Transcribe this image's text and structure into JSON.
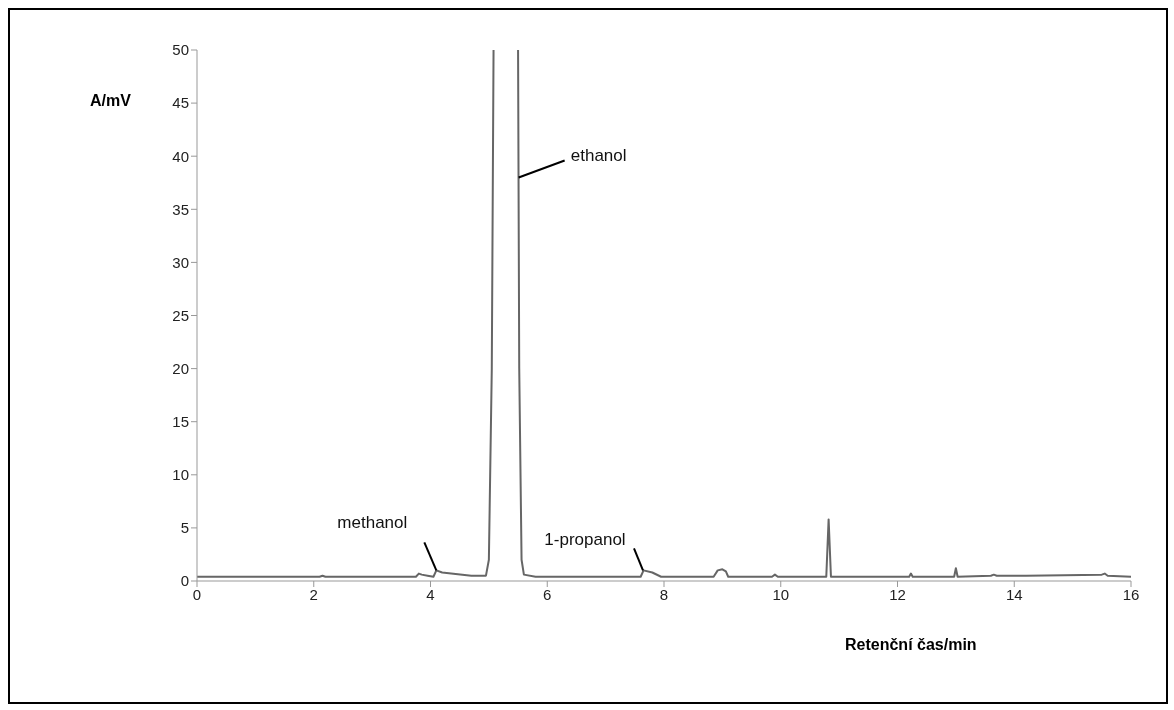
{
  "chart_data": {
    "type": "line",
    "xlabel": "Retenční čas/min",
    "ylabel": "A/mV",
    "xlim": [
      0,
      16
    ],
    "xticks": [
      0,
      2,
      4,
      6,
      8,
      10,
      12,
      14,
      16
    ],
    "ylim": [
      0,
      50
    ],
    "yticks": [
      0,
      5,
      10,
      15,
      20,
      25,
      30,
      35,
      40,
      45,
      50
    ],
    "marker": "none",
    "line_style": "solid",
    "series": [
      {
        "color": "#666666",
        "x": [
          0,
          2.1,
          2.15,
          2.2,
          3.75,
          3.8,
          3.85,
          3.95,
          4.05,
          4.1,
          4.2,
          4.7,
          4.95,
          5.0,
          5.05,
          5.08,
          5.3,
          5.5,
          5.52,
          5.56,
          5.6,
          5.8,
          7.6,
          7.65,
          7.8,
          7.95,
          8.85,
          8.92,
          9.0,
          9.06,
          9.1,
          9.85,
          9.9,
          9.95,
          10.78,
          10.82,
          10.86,
          12.2,
          12.23,
          12.26,
          12.97,
          13.0,
          13.03,
          13.6,
          13.65,
          13.7,
          14.2,
          15.5,
          15.55,
          15.6,
          16
        ],
        "values": [
          0.4,
          0.4,
          0.5,
          0.4,
          0.4,
          0.7,
          0.6,
          0.5,
          0.4,
          1.0,
          0.8,
          0.5,
          0.5,
          2,
          20,
          50,
          null,
          50,
          20,
          2,
          0.6,
          0.4,
          0.4,
          1.0,
          0.8,
          0.4,
          0.4,
          1.0,
          1.1,
          0.9,
          0.4,
          0.4,
          0.6,
          0.4,
          0.4,
          5.8,
          0.4,
          0.4,
          0.7,
          0.4,
          0.4,
          1.2,
          0.4,
          0.5,
          0.6,
          0.5,
          0.5,
          0.6,
          0.7,
          0.5,
          0.4
        ]
      }
    ],
    "annotations": [
      {
        "text": "methanol",
        "x": 4.1,
        "y": 1.0
      },
      {
        "text": "ethanol",
        "x": 5.51,
        "y": 38
      },
      {
        "text": "1-propanol",
        "x": 7.64,
        "y": 1.0
      }
    ]
  }
}
